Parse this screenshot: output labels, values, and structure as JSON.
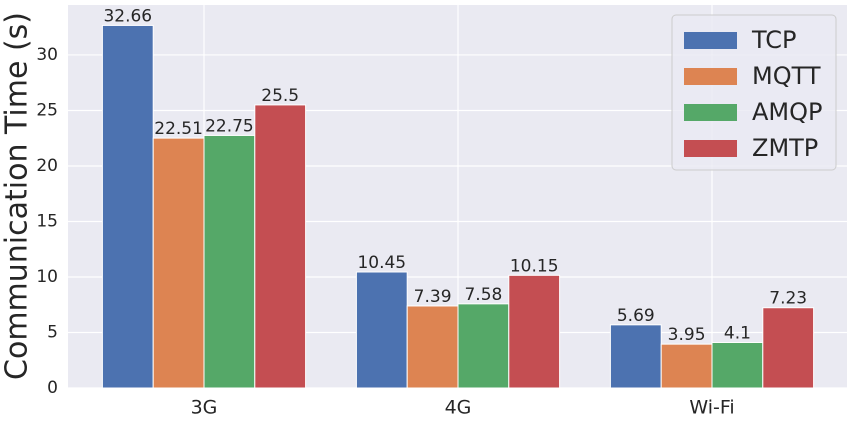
{
  "chart_data": {
    "type": "bar",
    "ylabel": "Communication Time (s)",
    "categories": [
      "3G",
      "4G",
      "Wi-Fi"
    ],
    "series": [
      {
        "name": "TCP",
        "color": "#4c72b0",
        "values": [
          32.66,
          10.45,
          5.69
        ]
      },
      {
        "name": "MQTT",
        "color": "#dd8452",
        "values": [
          22.51,
          7.39,
          3.95
        ]
      },
      {
        "name": "AMQP",
        "color": "#55a868",
        "values": [
          22.75,
          7.58,
          4.1
        ]
      },
      {
        "name": "ZMTP",
        "color": "#c44e52",
        "values": [
          25.5,
          10.15,
          7.23
        ]
      }
    ],
    "ylim": [
      0,
      34.5
    ],
    "yticks": [
      0,
      5,
      10,
      15,
      20,
      25,
      30
    ],
    "grid": true,
    "legend": "upper right"
  }
}
